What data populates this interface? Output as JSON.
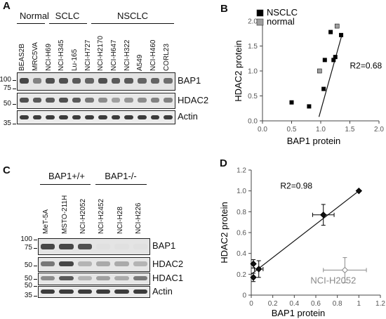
{
  "panels": {
    "A": {
      "label": "A",
      "groups": [
        {
          "label": "Normal"
        },
        {
          "label": "SCLC"
        },
        {
          "label": "NSCLC"
        }
      ],
      "lanes": [
        "BEAS2B",
        "MRC5VA",
        "NCI-H69",
        "NCI-H345",
        "Lu-165",
        "NCI-H727",
        "NCI-H2170",
        "NCI-H647",
        "NCI-H322",
        "A549",
        "NCI-H460",
        "CORL23"
      ],
      "blots": [
        {
          "protein": "BAP1",
          "markers": [
            "100",
            "75"
          ]
        },
        {
          "protein": "HDAC2",
          "markers": [
            "50"
          ]
        },
        {
          "protein": "Actin",
          "markers": [
            "35"
          ]
        }
      ]
    },
    "B": {
      "label": "B"
    },
    "C": {
      "label": "C",
      "groups": [
        {
          "label": "BAP1+/+"
        },
        {
          "label": "BAP1-/-"
        }
      ],
      "lanes": [
        "MeT-5A",
        "MSTO-211H",
        "NCI-H2052",
        "NCI-H2452",
        "NCI-H28",
        "NCI-H226"
      ],
      "blots": [
        {
          "protein": "BAP1",
          "markers": [
            "100",
            "75"
          ]
        },
        {
          "protein": "HDAC2",
          "markers": [
            "50"
          ]
        },
        {
          "protein": "HDAC1",
          "markers": [
            "50"
          ]
        },
        {
          "protein": "Actin",
          "markers": [
            "50",
            "35"
          ]
        }
      ]
    },
    "D": {
      "label": "D"
    }
  },
  "chart_data": [
    {
      "panel": "B",
      "type": "scatter",
      "title": "",
      "xlabel": "BAP1 protein",
      "ylabel": "HDAC2 protein",
      "xlim": [
        0,
        2.0
      ],
      "ylim": [
        0,
        2.0
      ],
      "xticks": [
        "0.0",
        "0.5",
        "1.0",
        "1.5",
        "2.0"
      ],
      "yticks": [
        "0.0",
        "0.5",
        "1.0",
        "1.5",
        "2.0"
      ],
      "annotation": "R2=0.68",
      "legend_position": "top-left",
      "series": [
        {
          "name": "NSCLC",
          "color": "#000000",
          "points": [
            [
              0.5,
              0.37
            ],
            [
              0.8,
              0.29
            ],
            [
              1.07,
              1.22
            ],
            [
              1.17,
              1.78
            ],
            [
              1.22,
              1.22
            ],
            [
              1.25,
              1.28
            ],
            [
              1.35,
              1.72
            ],
            [
              1.05,
              0.64
            ]
          ]
        },
        {
          "name": "normal",
          "color": "#9e9e9e",
          "points": [
            [
              0.98,
              1.0
            ],
            [
              1.28,
              1.9
            ]
          ]
        }
      ],
      "trendline": [
        [
          0.97,
          0.08
        ],
        [
          1.37,
          1.75
        ]
      ],
      "grid": false
    },
    {
      "panel": "D",
      "type": "scatter",
      "title": "",
      "xlabel": "BAP1 protein",
      "ylabel": "HDAC2 protein",
      "xlim": [
        0,
        1.2
      ],
      "ylim": [
        0,
        1.2
      ],
      "xticks": [
        "0",
        "0.2",
        "0.4",
        "0.6",
        "0.8",
        "1",
        "1.2"
      ],
      "yticks": [
        "0",
        "0.2",
        "0.4",
        "0.6",
        "0.8",
        "1.0",
        "1.2"
      ],
      "annotation": "R2=0.98",
      "point_label": "NCI-H2052",
      "points": [
        {
          "x": 1.0,
          "y": 1.0,
          "xerr": 0.0,
          "yerr": 0.0,
          "color": "#000000"
        },
        {
          "x": 0.67,
          "y": 0.77,
          "xerr": 0.1,
          "yerr": 0.1,
          "color": "#000000"
        },
        {
          "x": 0.07,
          "y": 0.25,
          "xerr": 0.04,
          "yerr": 0.08,
          "color": "#000000"
        },
        {
          "x": 0.02,
          "y": 0.3,
          "xerr": 0.01,
          "yerr": 0.04,
          "color": "#000000"
        },
        {
          "x": 0.02,
          "y": 0.17,
          "xerr": 0.01,
          "yerr": 0.04,
          "color": "#000000"
        },
        {
          "x": 0.87,
          "y": 0.24,
          "xerr": 0.2,
          "yerr": 0.12,
          "color": "#8a8a8a"
        }
      ],
      "trendline": [
        [
          0.0,
          0.2
        ],
        [
          1.0,
          1.0
        ]
      ],
      "grid": false
    }
  ]
}
